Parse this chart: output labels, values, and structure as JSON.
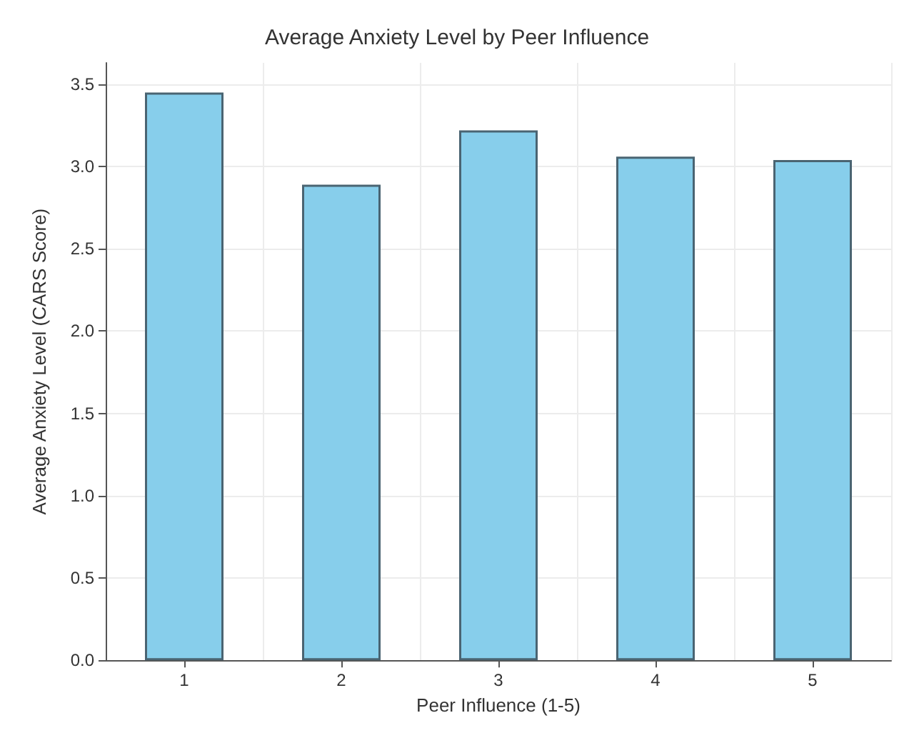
{
  "chart_data": {
    "type": "bar",
    "title": "Average Anxiety Level by Peer Influence",
    "xlabel": "Peer Influence (1-5)",
    "ylabel": "Average Anxiety Level (CARS Score)",
    "categories": [
      "1",
      "2",
      "3",
      "4",
      "5"
    ],
    "values": [
      3.45,
      2.89,
      3.22,
      3.06,
      3.04
    ],
    "color": "#87ceeb",
    "ylim": [
      0,
      3.63
    ],
    "yticks": [
      {
        "value": 0,
        "label": "0.0"
      },
      0.5,
      {
        "value": 1,
        "label": "1.0"
      },
      1.5,
      {
        "value": 2,
        "label": "2.0"
      },
      2.5,
      {
        "value": 3,
        "label": "3.0"
      },
      3.5
    ],
    "grid": true
  }
}
